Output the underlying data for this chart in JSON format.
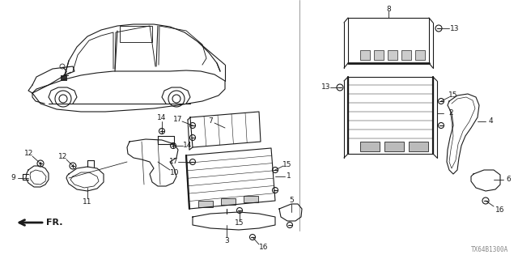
{
  "background_color": "#ffffff",
  "line_color": "#1a1a1a",
  "catalog_code": "TX64B1300A",
  "figsize": [
    6.4,
    3.2
  ],
  "dpi": 100
}
